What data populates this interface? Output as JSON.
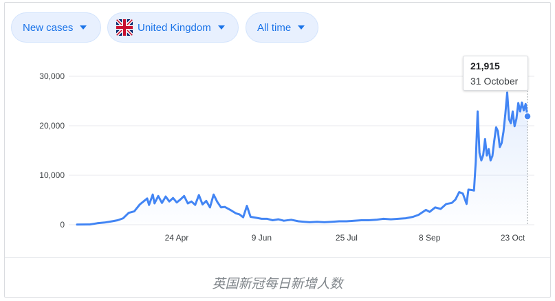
{
  "filters": {
    "metric": "New cases",
    "region": "United Kingdom",
    "range": "All time"
  },
  "tooltip": {
    "value": "21,915",
    "date": "31 October"
  },
  "caption": "英国新冠每日新增人数",
  "colors": {
    "line": "#4285f4",
    "pill_bg": "#e8f0fe",
    "pill_text": "#1a73e8"
  },
  "icons": {
    "region_flag": "uk-flag-icon",
    "dropdown": "caret-down-icon"
  },
  "chart_data": {
    "type": "area",
    "ylim": [
      0,
      30000
    ],
    "y_ticks": [
      0,
      10000,
      20000,
      30000
    ],
    "y_tick_labels": [
      "0",
      "10,000",
      "20,000",
      "30,000"
    ],
    "x_start": "2020-03-01",
    "x_end": "2020-10-31",
    "x_ticks": [
      {
        "date": "2020-04-24",
        "label": "24 Apr"
      },
      {
        "date": "2020-06-09",
        "label": "9 Jun"
      },
      {
        "date": "2020-07-25",
        "label": "25 Jul"
      },
      {
        "date": "2020-09-08",
        "label": "8 Sep"
      },
      {
        "date": "2020-10-23",
        "label": "23 Oct"
      }
    ],
    "grid": true,
    "series": [
      {
        "values": [
          [
            "2020-03-01",
            30
          ],
          [
            "2020-03-08",
            60
          ],
          [
            "2020-03-12",
            300
          ],
          [
            "2020-03-16",
            450
          ],
          [
            "2020-03-20",
            700
          ],
          [
            "2020-03-23",
            900
          ],
          [
            "2020-03-26",
            1300
          ],
          [
            "2020-03-29",
            2400
          ],
          [
            "2020-04-01",
            2700
          ],
          [
            "2020-04-04",
            4100
          ],
          [
            "2020-04-06",
            4700
          ],
          [
            "2020-04-08",
            5300
          ],
          [
            "2020-04-09",
            4000
          ],
          [
            "2020-04-11",
            6100
          ],
          [
            "2020-04-12",
            4300
          ],
          [
            "2020-04-14",
            5800
          ],
          [
            "2020-04-16",
            4400
          ],
          [
            "2020-04-18",
            5700
          ],
          [
            "2020-04-20",
            4700
          ],
          [
            "2020-04-22",
            5400
          ],
          [
            "2020-04-24",
            4500
          ],
          [
            "2020-04-26",
            5100
          ],
          [
            "2020-04-28",
            5800
          ],
          [
            "2020-04-30",
            4300
          ],
          [
            "2020-05-02",
            4700
          ],
          [
            "2020-05-04",
            4000
          ],
          [
            "2020-05-06",
            6000
          ],
          [
            "2020-05-08",
            4100
          ],
          [
            "2020-05-10",
            4800
          ],
          [
            "2020-05-12",
            3500
          ],
          [
            "2020-05-14",
            6100
          ],
          [
            "2020-05-16",
            4600
          ],
          [
            "2020-05-18",
            3500
          ],
          [
            "2020-05-20",
            3600
          ],
          [
            "2020-05-23",
            3000
          ],
          [
            "2020-05-26",
            2300
          ],
          [
            "2020-05-28",
            2100
          ],
          [
            "2020-05-30",
            1500
          ],
          [
            "2020-06-01",
            3800
          ],
          [
            "2020-06-03",
            1600
          ],
          [
            "2020-06-06",
            1400
          ],
          [
            "2020-06-09",
            1200
          ],
          [
            "2020-06-12",
            1200
          ],
          [
            "2020-06-15",
            900
          ],
          [
            "2020-06-18",
            1100
          ],
          [
            "2020-06-21",
            800
          ],
          [
            "2020-06-25",
            1000
          ],
          [
            "2020-06-29",
            700
          ],
          [
            "2020-07-02",
            600
          ],
          [
            "2020-07-05",
            500
          ],
          [
            "2020-07-09",
            600
          ],
          [
            "2020-07-13",
            500
          ],
          [
            "2020-07-17",
            600
          ],
          [
            "2020-07-21",
            700
          ],
          [
            "2020-07-25",
            700
          ],
          [
            "2020-07-29",
            800
          ],
          [
            "2020-08-02",
            900
          ],
          [
            "2020-08-06",
            900
          ],
          [
            "2020-08-10",
            1000
          ],
          [
            "2020-08-14",
            1200
          ],
          [
            "2020-08-18",
            1100
          ],
          [
            "2020-08-22",
            1200
          ],
          [
            "2020-08-26",
            1300
          ],
          [
            "2020-08-30",
            1600
          ],
          [
            "2020-09-02",
            2000
          ],
          [
            "2020-09-06",
            3000
          ],
          [
            "2020-09-08",
            2600
          ],
          [
            "2020-09-11",
            3500
          ],
          [
            "2020-09-14",
            3200
          ],
          [
            "2020-09-17",
            4200
          ],
          [
            "2020-09-20",
            4400
          ],
          [
            "2020-09-22",
            5100
          ],
          [
            "2020-09-24",
            6600
          ],
          [
            "2020-09-26",
            6300
          ],
          [
            "2020-09-28",
            4200
          ],
          [
            "2020-09-29",
            7100
          ],
          [
            "2020-10-01",
            7000
          ],
          [
            "2020-10-02",
            6900
          ],
          [
            "2020-10-03",
            12800
          ],
          [
            "2020-10-04",
            22900
          ],
          [
            "2020-10-05",
            14500
          ],
          [
            "2020-10-06",
            13000
          ],
          [
            "2020-10-07",
            14100
          ],
          [
            "2020-10-08",
            17300
          ],
          [
            "2020-10-09",
            14000
          ],
          [
            "2020-10-10",
            15300
          ],
          [
            "2020-10-11",
            13000
          ],
          [
            "2020-10-12",
            13900
          ],
          [
            "2020-10-13",
            17000
          ],
          [
            "2020-10-14",
            19700
          ],
          [
            "2020-10-15",
            18900
          ],
          [
            "2020-10-16",
            15700
          ],
          [
            "2020-10-17",
            16500
          ],
          [
            "2020-10-18",
            18800
          ],
          [
            "2020-10-19",
            22400
          ],
          [
            "2020-10-20",
            26700
          ],
          [
            "2020-10-21",
            21300
          ],
          [
            "2020-10-22",
            20500
          ],
          [
            "2020-10-23",
            22900
          ],
          [
            "2020-10-24",
            19900
          ],
          [
            "2020-10-25",
            21400
          ],
          [
            "2020-10-26",
            24600
          ],
          [
            "2020-10-27",
            22900
          ],
          [
            "2020-10-28",
            24700
          ],
          [
            "2020-10-29",
            23100
          ],
          [
            "2020-10-30",
            24400
          ],
          [
            "2020-10-31",
            21915
          ]
        ]
      }
    ],
    "highlight": {
      "date": "2020-10-31",
      "value": 21915
    }
  }
}
